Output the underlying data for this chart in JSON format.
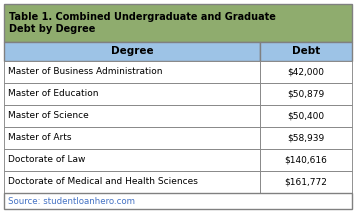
{
  "title": "Table 1. Combined Undergraduate and Graduate\nDebt by Degree",
  "title_bg_color": "#8fac6e",
  "header_bg_color": "#9dc3e6",
  "header_text_color": "#000000",
  "row_bg_color": "#ffffff",
  "source_text": "Source: studentloanhero.com",
  "source_color": "#4472c4",
  "border_color": "#808080",
  "col_headers": [
    "Degree",
    "Debt"
  ],
  "degrees": [
    "Master of Business Administration",
    "Master of Education",
    "Master of Science",
    "Master of Arts",
    "Doctorate of Law",
    "Doctorate of Medical and Health Sciences"
  ],
  "debts": [
    "$42,000",
    "$50,879",
    "$50,400",
    "$58,939",
    "$140,616",
    "$161,772"
  ],
  "figsize": [
    3.56,
    2.16
  ],
  "dpi": 100,
  "col_split": 0.735,
  "title_fontsize": 7.0,
  "header_fontsize": 7.5,
  "data_fontsize": 6.5,
  "source_fontsize": 6.2
}
